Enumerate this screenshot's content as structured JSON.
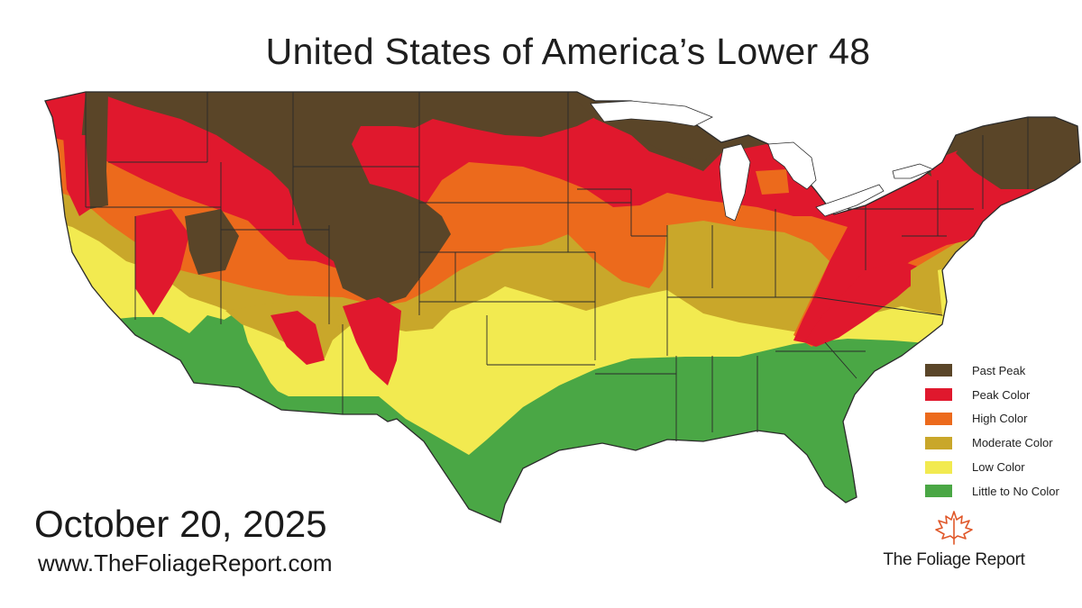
{
  "title": "United States of America’s Lower 48",
  "date": "October 20, 2025",
  "url": "www.TheFoliageReport.com",
  "brand": {
    "name": "The Foliage Report",
    "logo_icon": "maple-leaf-icon"
  },
  "legend": [
    {
      "label": "Past Peak",
      "color": "#5a4528"
    },
    {
      "label": "Peak Color",
      "color": "#e0182d"
    },
    {
      "label": "High Color",
      "color": "#ec6a1c"
    },
    {
      "label": "Moderate Color",
      "color": "#c9a72a"
    },
    {
      "label": "Low Color",
      "color": "#f2ea50"
    },
    {
      "label": "Little to No Color",
      "color": "#4aa745"
    }
  ],
  "map": {
    "region": "Contiguous United States",
    "background": "#ffffff",
    "border_color": "#2b2b2b"
  }
}
